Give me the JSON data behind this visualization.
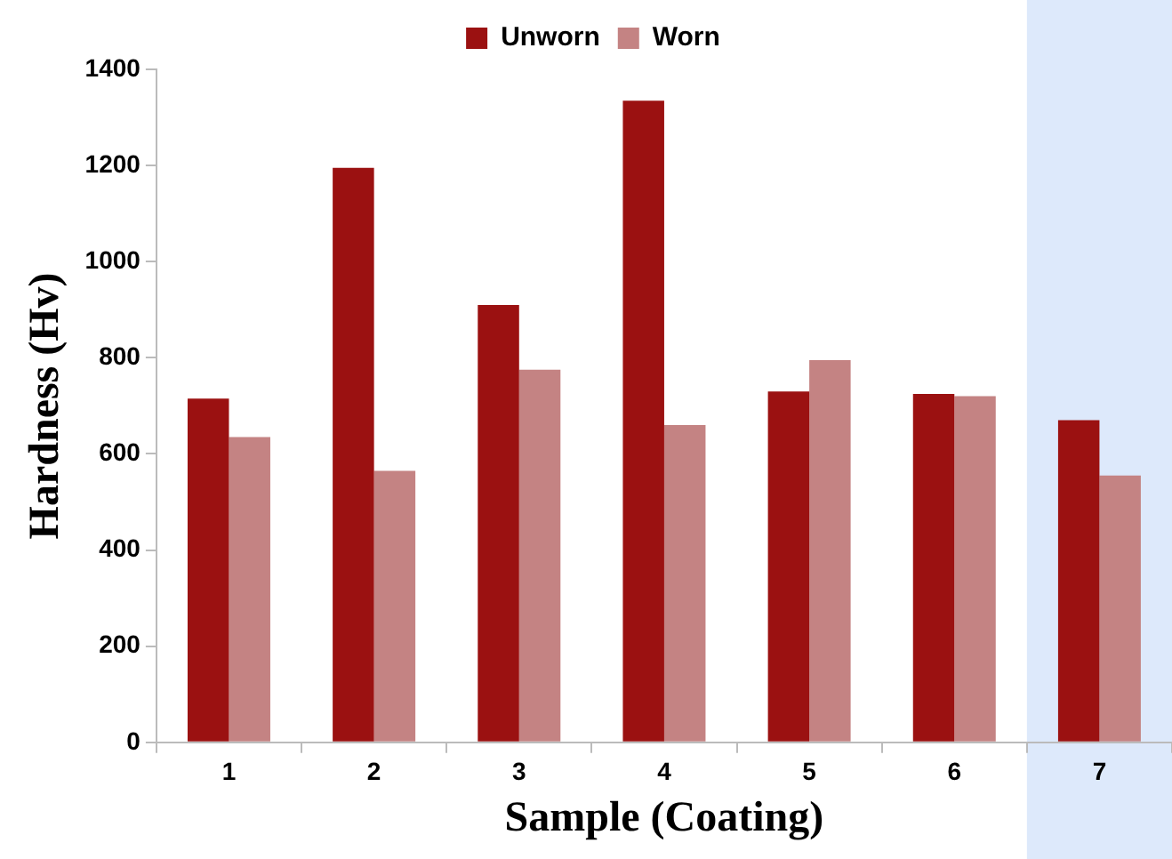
{
  "chart_data": {
    "type": "bar",
    "xlabel": "Sample (Coating)",
    "ylabel": "Hardness (Hv)",
    "categories": [
      "1",
      "2",
      "3",
      "4",
      "5",
      "6",
      "7"
    ],
    "series": [
      {
        "name": "Unworn",
        "color": "#9b1111",
        "values": [
          715,
          1195,
          910,
          1335,
          730,
          725,
          670
        ]
      },
      {
        "name": "Worn",
        "color": "#c48383",
        "values": [
          635,
          565,
          775,
          660,
          795,
          720,
          555
        ]
      }
    ],
    "ylim": [
      0,
      1400
    ],
    "yticks": [
      0,
      200,
      400,
      600,
      800,
      1000,
      1200,
      1400
    ],
    "bands": [
      {
        "axis": "x",
        "from": "7",
        "to": "7",
        "color": "#dde9fb"
      }
    ],
    "grid": false,
    "legend": "top"
  }
}
